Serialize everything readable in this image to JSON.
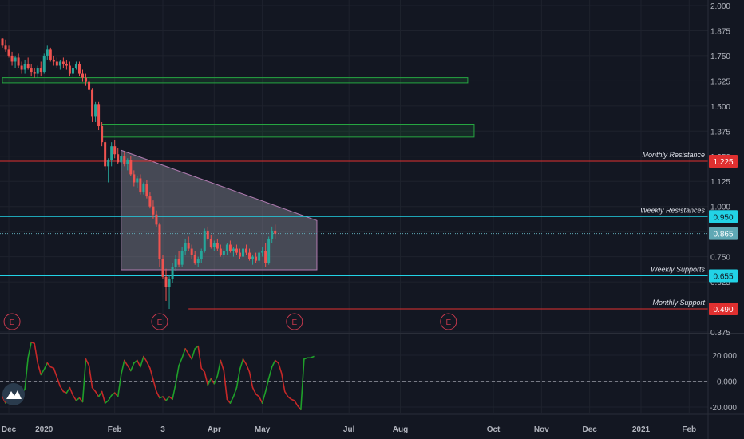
{
  "chart_data": {
    "type": "candlestick",
    "price_axis": {
      "range": [
        0.375,
        2.0
      ],
      "ticks": [
        "2.000",
        "1.875",
        "1.750",
        "1.625",
        "1.500",
        "1.375",
        "1.250",
        "1.125",
        "1.000",
        "0.875",
        "0.750",
        "0.625",
        "0.500",
        "0.375"
      ]
    },
    "x_axis": {
      "labels": [
        {
          "text": "Dec",
          "bar": 2
        },
        {
          "text": "2020",
          "bar": 13
        },
        {
          "text": "Feb",
          "bar": 35
        },
        {
          "text": "3",
          "bar": 50
        },
        {
          "text": "Apr",
          "bar": 66
        },
        {
          "text": "May",
          "bar": 81
        },
        {
          "text": "Jul",
          "bar": 108
        },
        {
          "text": "Aug",
          "bar": 124
        },
        {
          "text": "Oct",
          "bar": 153
        },
        {
          "text": "Nov",
          "bar": 168
        },
        {
          "text": "Dec",
          "bar": 183
        },
        {
          "text": "2021",
          "bar": 199
        },
        {
          "text": "Feb",
          "bar": 214
        }
      ]
    },
    "price_series": [
      [
        1.835,
        1.84,
        1.79,
        1.8
      ],
      [
        1.8,
        1.83,
        1.77,
        1.78
      ],
      [
        1.78,
        1.8,
        1.74,
        1.75
      ],
      [
        1.75,
        1.77,
        1.7,
        1.72
      ],
      [
        1.72,
        1.75,
        1.69,
        1.74
      ],
      [
        1.74,
        1.76,
        1.69,
        1.7
      ],
      [
        1.7,
        1.72,
        1.66,
        1.68
      ],
      [
        1.68,
        1.73,
        1.66,
        1.71
      ],
      [
        1.71,
        1.74,
        1.68,
        1.69
      ],
      [
        1.69,
        1.71,
        1.65,
        1.67
      ],
      [
        1.67,
        1.69,
        1.64,
        1.66
      ],
      [
        1.66,
        1.7,
        1.64,
        1.69
      ],
      [
        1.69,
        1.72,
        1.65,
        1.67
      ],
      [
        1.67,
        1.76,
        1.66,
        1.75
      ],
      [
        1.75,
        1.8,
        1.73,
        1.78
      ],
      [
        1.78,
        1.79,
        1.72,
        1.73
      ],
      [
        1.73,
        1.75,
        1.7,
        1.72
      ],
      [
        1.72,
        1.74,
        1.69,
        1.7
      ],
      [
        1.7,
        1.73,
        1.68,
        1.72
      ],
      [
        1.72,
        1.74,
        1.69,
        1.71
      ],
      [
        1.71,
        1.73,
        1.68,
        1.7
      ],
      [
        1.7,
        1.72,
        1.65,
        1.66
      ],
      [
        1.66,
        1.7,
        1.64,
        1.69
      ],
      [
        1.69,
        1.72,
        1.68,
        1.71
      ],
      [
        1.71,
        1.72,
        1.65,
        1.66
      ],
      [
        1.66,
        1.68,
        1.62,
        1.64
      ],
      [
        1.64,
        1.66,
        1.6,
        1.62
      ],
      [
        1.62,
        1.64,
        1.56,
        1.58
      ],
      [
        1.58,
        1.59,
        1.42,
        1.45
      ],
      [
        1.45,
        1.52,
        1.42,
        1.51
      ],
      [
        1.51,
        1.52,
        1.38,
        1.4
      ],
      [
        1.4,
        1.42,
        1.3,
        1.32
      ],
      [
        1.32,
        1.33,
        1.18,
        1.2
      ],
      [
        1.2,
        1.24,
        1.12,
        1.23
      ],
      [
        1.23,
        1.32,
        1.2,
        1.3
      ],
      [
        1.3,
        1.33,
        1.24,
        1.26
      ],
      [
        1.26,
        1.29,
        1.21,
        1.22
      ],
      [
        1.22,
        1.26,
        1.18,
        1.25
      ],
      [
        1.25,
        1.27,
        1.2,
        1.21
      ],
      [
        1.21,
        1.24,
        1.18,
        1.23
      ],
      [
        1.23,
        1.25,
        1.15,
        1.16
      ],
      [
        1.16,
        1.18,
        1.1,
        1.12
      ],
      [
        1.12,
        1.15,
        1.09,
        1.14
      ],
      [
        1.14,
        1.16,
        1.06,
        1.07
      ],
      [
        1.07,
        1.12,
        1.06,
        1.11
      ],
      [
        1.11,
        1.13,
        1.04,
        1.05
      ],
      [
        1.05,
        1.07,
        0.99,
        1.0
      ],
      [
        1.0,
        1.03,
        0.94,
        0.96
      ],
      [
        0.96,
        0.98,
        0.9,
        0.91
      ],
      [
        0.91,
        0.92,
        0.7,
        0.74
      ],
      [
        0.74,
        0.76,
        0.64,
        0.65
      ],
      [
        0.65,
        0.69,
        0.53,
        0.6
      ],
      [
        0.6,
        0.66,
        0.49,
        0.64
      ],
      [
        0.64,
        0.72,
        0.62,
        0.7
      ],
      [
        0.7,
        0.76,
        0.68,
        0.74
      ],
      [
        0.74,
        0.78,
        0.7,
        0.71
      ],
      [
        0.71,
        0.8,
        0.7,
        0.78
      ],
      [
        0.78,
        0.84,
        0.76,
        0.82
      ],
      [
        0.82,
        0.85,
        0.78,
        0.79
      ],
      [
        0.79,
        0.81,
        0.74,
        0.76
      ],
      [
        0.76,
        0.78,
        0.71,
        0.72
      ],
      [
        0.72,
        0.75,
        0.7,
        0.74
      ],
      [
        0.74,
        0.79,
        0.72,
        0.78
      ],
      [
        0.78,
        0.89,
        0.77,
        0.88
      ],
      [
        0.88,
        0.9,
        0.83,
        0.84
      ],
      [
        0.84,
        0.86,
        0.79,
        0.8
      ],
      [
        0.8,
        0.83,
        0.78,
        0.82
      ],
      [
        0.82,
        0.84,
        0.78,
        0.79
      ],
      [
        0.79,
        0.81,
        0.75,
        0.76
      ],
      [
        0.76,
        0.79,
        0.74,
        0.78
      ],
      [
        0.78,
        0.82,
        0.76,
        0.81
      ],
      [
        0.81,
        0.83,
        0.77,
        0.78
      ],
      [
        0.78,
        0.8,
        0.75,
        0.79
      ],
      [
        0.79,
        0.81,
        0.76,
        0.77
      ],
      [
        0.77,
        0.79,
        0.74,
        0.75
      ],
      [
        0.75,
        0.8,
        0.74,
        0.79
      ],
      [
        0.79,
        0.81,
        0.76,
        0.77
      ],
      [
        0.77,
        0.79,
        0.73,
        0.74
      ],
      [
        0.74,
        0.76,
        0.71,
        0.75
      ],
      [
        0.75,
        0.77,
        0.72,
        0.73
      ],
      [
        0.73,
        0.78,
        0.72,
        0.77
      ],
      [
        0.77,
        0.8,
        0.75,
        0.78
      ],
      [
        0.78,
        0.82,
        0.7,
        0.72
      ],
      [
        0.72,
        0.85,
        0.71,
        0.84
      ],
      [
        0.84,
        0.9,
        0.82,
        0.88
      ],
      [
        0.88,
        0.91,
        0.84,
        0.865
      ]
    ],
    "lines": [
      {
        "label": "Monthly Resistance",
        "price": 1.225,
        "tag": "1.225",
        "color": "#e03030",
        "tag_text_color": "#ffffff",
        "style": "solid"
      },
      {
        "label": "Weekly Resistances",
        "price": 0.95,
        "tag": "0.950",
        "color": "#22d3e6",
        "tag_text_color": "#131722",
        "style": "solid"
      },
      {
        "label": "",
        "price": 0.865,
        "tag": "0.865",
        "color": "#5fa8b4",
        "tag_text_color": "#ffffff",
        "style": "dotted"
      },
      {
        "label": "Weekly Supports",
        "price": 0.655,
        "tag": "0.655",
        "color": "#22d3e6",
        "tag_text_color": "#131722",
        "style": "solid"
      },
      {
        "label": "Monthly Support",
        "price": 0.49,
        "tag": "0.490",
        "color": "#e03030",
        "tag_text_color": "#ffffff",
        "style": "solid"
      }
    ],
    "zones": [
      {
        "from_bar": 0,
        "to_bar": 145,
        "top": 1.64,
        "bottom": 1.615,
        "color": "#26a641"
      },
      {
        "from_bar": 31,
        "to_bar": 147,
        "top": 1.41,
        "bottom": 1.345,
        "color": "#26a641"
      }
    ],
    "triangle": {
      "p1": [
        37,
        1.28
      ],
      "p2": [
        98,
        0.93
      ],
      "p3": [
        98,
        0.685
      ],
      "p4": [
        37,
        0.685
      ]
    },
    "earnings_markers": [
      {
        "bar": 3,
        "text": "E"
      },
      {
        "bar": 49,
        "text": "E"
      },
      {
        "bar": 91,
        "text": "E"
      },
      {
        "bar": 139,
        "text": "E"
      }
    ],
    "oscillator": {
      "range": [
        -20,
        20
      ],
      "ticks": [
        "20.000",
        "0.000",
        "-20.000"
      ],
      "values": [
        -12,
        -17,
        -14,
        -18,
        -15,
        -13,
        -10,
        -6,
        18,
        30,
        29,
        14,
        5,
        9,
        14,
        11,
        10,
        3,
        -4,
        -8,
        -9,
        -5,
        -11,
        -15,
        -13,
        -16,
        17,
        12,
        -5,
        -8,
        -12,
        -8,
        -17,
        -15,
        -11,
        -9,
        -12,
        5,
        16,
        12,
        8,
        14,
        16,
        11,
        19,
        15,
        10,
        1,
        -8,
        -13,
        -12,
        -15,
        -12,
        -14,
        -2,
        12,
        18,
        25,
        21,
        17,
        25,
        27,
        10,
        7,
        -3,
        2,
        -2,
        4,
        16,
        8,
        -14,
        -17,
        -12,
        -5,
        9,
        17,
        13,
        7,
        -5,
        -10,
        -12,
        -17,
        -8,
        2,
        11,
        16,
        14,
        6,
        -8,
        -12,
        -14,
        -15,
        -19,
        -22,
        17,
        18,
        18,
        19
      ]
    },
    "grid": true
  }
}
